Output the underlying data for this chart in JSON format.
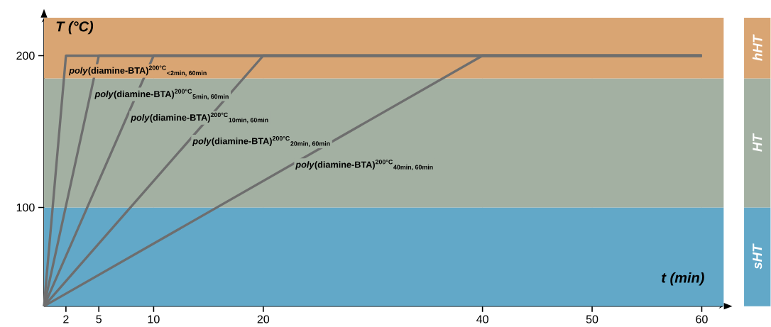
{
  "chart_data": {
    "type": "line",
    "xlabel": "t (min)",
    "ylabel": "T (°C)",
    "xlim": [
      0,
      62
    ],
    "xticks": [
      2,
      5,
      10,
      20,
      40,
      50,
      60
    ],
    "ylim": [
      35,
      225
    ],
    "yticks": [
      100,
      200
    ],
    "grid": "x",
    "legend": false,
    "marker": "none",
    "line_style": "solid",
    "series": [
      {
        "name": "*poly*(diamine-BTA)$^{200°C}$$_{<2min, 60min}$",
        "color": "#6e6e6e",
        "x": [
          0,
          2,
          60
        ],
        "values": [
          35,
          200,
          200
        ]
      },
      {
        "name": "*poly*(diamine-BTA)$^{200°C}$$_{5min, 60min}$",
        "color": "#6e6e6e",
        "x": [
          0,
          5,
          60
        ],
        "values": [
          35,
          200,
          200
        ]
      },
      {
        "name": "*poly*(diamine-BTA)$^{200°C}$$_{10min, 60min}$",
        "color": "#6e6e6e",
        "x": [
          0,
          10,
          60
        ],
        "values": [
          35,
          200,
          200
        ]
      },
      {
        "name": "*poly*(diamine-BTA)$^{200°C}$$_{20min, 60min}$",
        "color": "#6e6e6e",
        "x": [
          0,
          20,
          60
        ],
        "values": [
          35,
          200,
          200
        ]
      },
      {
        "name": "*poly*(diamine-BTA)$^{200°C}$$_{40min, 60min}$",
        "color": "#6e6e6e",
        "x": [
          0,
          40,
          60
        ],
        "values": [
          35,
          200,
          200
        ]
      }
    ],
    "bands": [
      {
        "axis": "y",
        "from": 35,
        "to": 100,
        "label": "sHT",
        "color": "#62a8c8"
      },
      {
        "axis": "y",
        "from": 100,
        "to": 185,
        "label": "HT",
        "color": "#a3b0a2"
      },
      {
        "axis": "y",
        "from": 185,
        "to": 225,
        "label": "hHT",
        "color": "#d9a573"
      }
    ]
  }
}
